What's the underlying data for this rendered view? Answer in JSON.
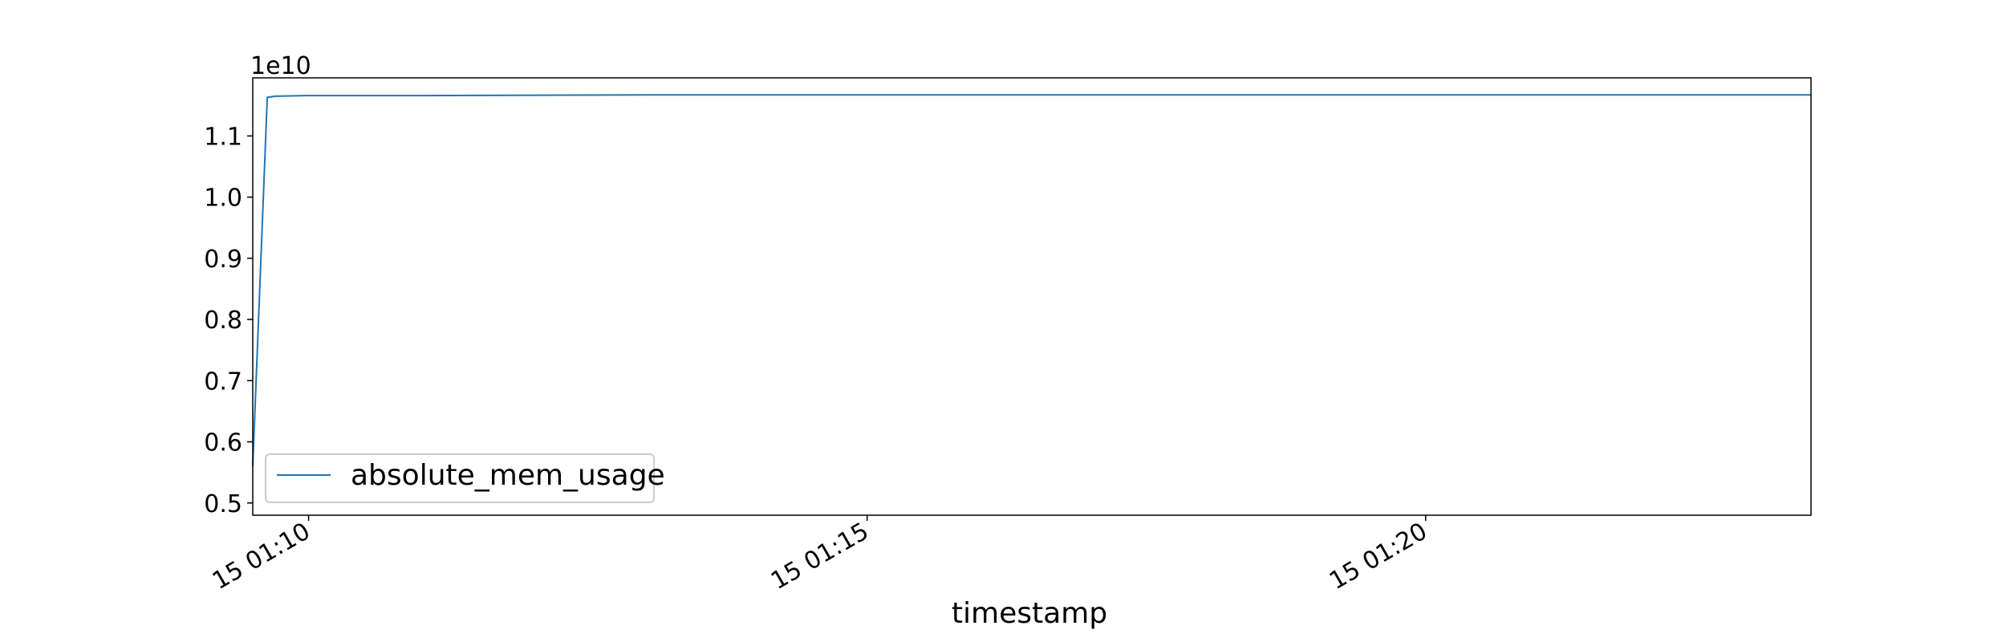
{
  "chart_data": {
    "type": "line",
    "xlabel": "timestamp",
    "ylabel": "",
    "y_offset_label": "1e10",
    "x_tick_labels": [
      "15 01:10",
      "15 01:15",
      "15 01:20"
    ],
    "x_tick_minutes": [
      10,
      15,
      20
    ],
    "xlim_minutes": [
      9.5,
      23.45
    ],
    "y_ticks": [
      0.5,
      0.6,
      0.7,
      0.8,
      0.9,
      1.0,
      1.1
    ],
    "y_tick_labels": [
      "0.5",
      "0.6",
      "0.7",
      "0.8",
      "0.9",
      "1.0",
      "1.1"
    ],
    "ylim": [
      0.48,
      1.195
    ],
    "legend_position": "lower-left",
    "grid": false,
    "series": [
      {
        "name": "absolute_mem_usage",
        "color": "#1f77b4",
        "x_minutes": [
          9.5,
          9.63,
          9.7,
          10.0,
          11.0,
          13.0,
          16.0,
          20.0,
          23.45
        ],
        "values": [
          0.56,
          1.163,
          1.165,
          1.166,
          1.166,
          1.167,
          1.167,
          1.167,
          1.167
        ]
      }
    ]
  }
}
